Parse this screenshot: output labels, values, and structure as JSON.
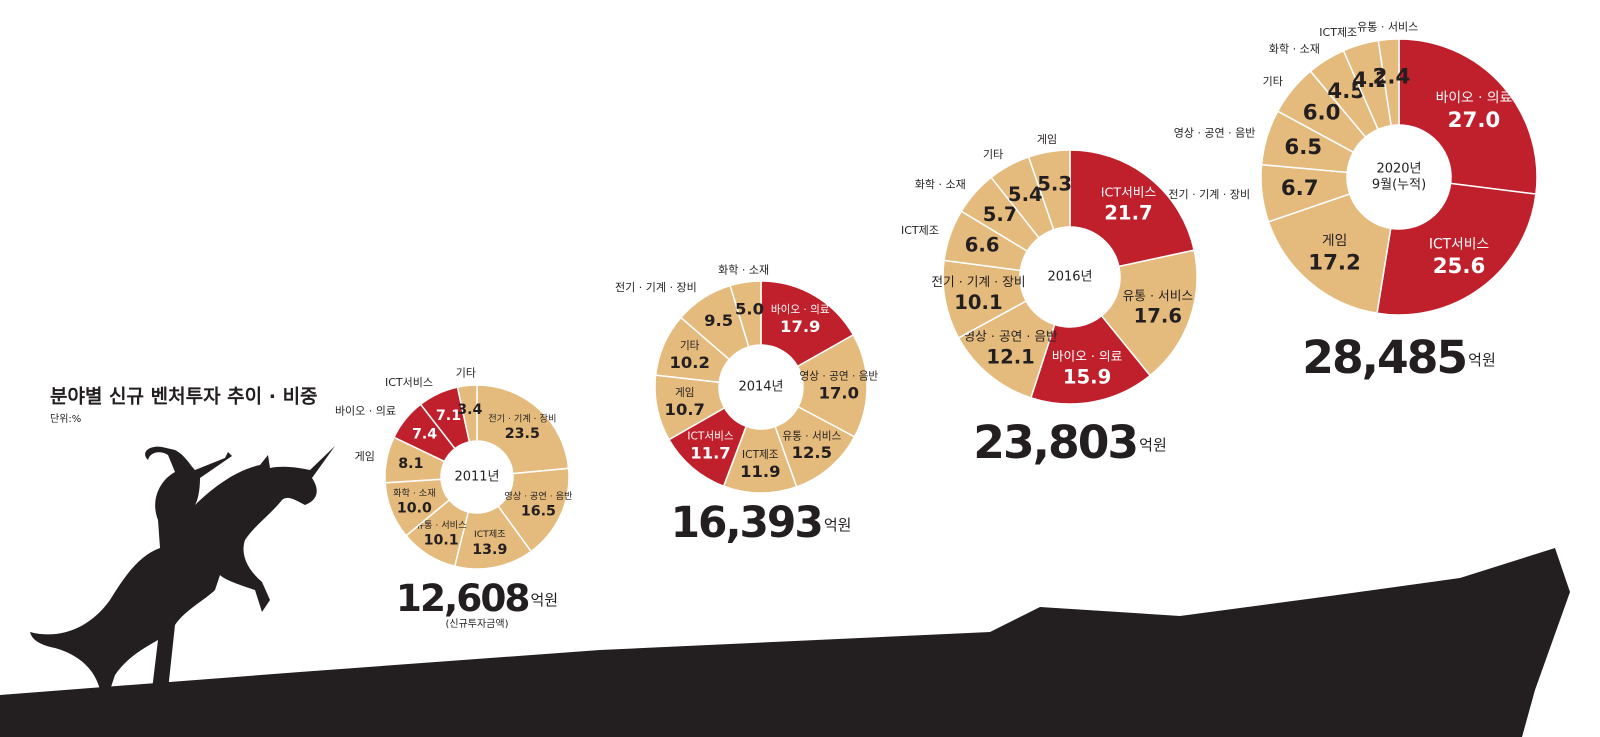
{
  "title": "분야별 신규 벤처투자 추이 · 비중",
  "subtitle": "단위:%",
  "chart_data": [
    {
      "type": "donut",
      "center_lines": [
        "2011년"
      ],
      "total": "12,608",
      "total_unit": "억원",
      "note": "(신규투자금액)",
      "categories": [
        "전기 · 기계 · 장비",
        "영상 · 공연 · 음반",
        "ICT제조",
        "유통 · 서비스",
        "화학 · 소재",
        "게임",
        "바이오 · 의료",
        "ICT서비스",
        "기타"
      ],
      "values": [
        23.5,
        16.5,
        13.9,
        10.1,
        10.0,
        8.1,
        7.4,
        7.1,
        3.4
      ],
      "value_labels": [
        "23.5",
        "16.5",
        "13.9",
        "10.1",
        "10.0",
        "8.1",
        "7.4",
        "7.1",
        "3.4"
      ],
      "colors": [
        "#e4bb7d",
        "#e4bb7d",
        "#e4bb7d",
        "#e4bb7d",
        "#e4bb7d",
        "#e4bb7d",
        "#c01f2c",
        "#c01f2c",
        "#e4bb7d"
      ]
    },
    {
      "type": "donut",
      "center_lines": [
        "2014년"
      ],
      "total": "16,393",
      "total_unit": "억원",
      "categories": [
        "바이오 · 의료",
        "영상 · 공연 · 음반",
        "유통 · 서비스",
        "ICT제조",
        "ICT서비스",
        "게임",
        "기타",
        "전기 · 기계 · 장비",
        "화학 · 소재"
      ],
      "values": [
        17.9,
        17.0,
        12.5,
        11.9,
        11.7,
        10.7,
        10.2,
        9.5,
        5.0
      ],
      "value_labels": [
        "17.9",
        "17.0",
        "12.5",
        "11.9",
        "11.7",
        "10.7",
        "10.2",
        "9.5",
        "5.0"
      ],
      "colors": [
        "#c01f2c",
        "#e4bb7d",
        "#e4bb7d",
        "#e4bb7d",
        "#c01f2c",
        "#e4bb7d",
        "#e4bb7d",
        "#e4bb7d",
        "#e4bb7d"
      ]
    },
    {
      "type": "donut",
      "center_lines": [
        "2016년"
      ],
      "total": "23,803",
      "total_unit": "억원",
      "categories": [
        "ICT서비스",
        "유통 · 서비스",
        "바이오 · 의료",
        "영상 · 공연 · 음반",
        "전기 · 기계 · 장비",
        "ICT제조",
        "화학 · 소재",
        "기타",
        "게임"
      ],
      "values": [
        21.7,
        17.6,
        15.9,
        12.1,
        10.1,
        6.6,
        5.7,
        5.4,
        5.3
      ],
      "value_labels": [
        "21.7",
        "17.6",
        "15.9",
        "12.1",
        "10.1",
        "6.6",
        "5.7",
        "5.4",
        "5.3"
      ],
      "colors": [
        "#c01f2c",
        "#e4bb7d",
        "#c01f2c",
        "#e4bb7d",
        "#e4bb7d",
        "#e4bb7d",
        "#e4bb7d",
        "#e4bb7d",
        "#e4bb7d"
      ]
    },
    {
      "type": "donut",
      "center_lines": [
        "2020년",
        "9월(누적)"
      ],
      "total": "28,485",
      "total_unit": "억원",
      "categories": [
        "바이오 · 의료",
        "ICT서비스",
        "게임",
        "전기 · 기계 · 장비",
        "영상 · 공연 · 음반",
        "기타",
        "화학 · 소재",
        "ICT제조",
        "유통 · 서비스"
      ],
      "values": [
        27.0,
        25.6,
        17.2,
        6.7,
        6.5,
        6.0,
        4.5,
        4.2,
        2.4
      ],
      "value_labels": [
        "27.0",
        "25.6",
        "17.2",
        "6.7",
        "6.5",
        "6.0",
        "4.5",
        "4.2",
        "2.4"
      ],
      "colors": [
        "#c01f2c",
        "#c01f2c",
        "#e4bb7d",
        "#e4bb7d",
        "#e4bb7d",
        "#e4bb7d",
        "#e4bb7d",
        "#e4bb7d",
        "#e4bb7d"
      ]
    }
  ]
}
